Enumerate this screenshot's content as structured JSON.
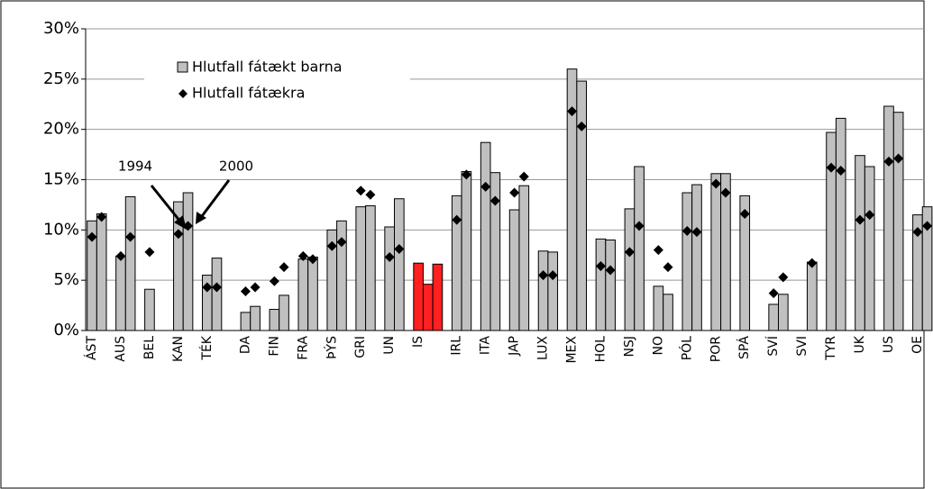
{
  "chart_data": {
    "type": "bar",
    "categories": [
      "ÁST",
      null,
      null,
      "AUS",
      null,
      null,
      "BEL",
      null,
      null,
      "KAN",
      null,
      null,
      "TÉK",
      null,
      null,
      null,
      "DA",
      null,
      null,
      "FIN",
      null,
      null,
      "FRA",
      null,
      null,
      "ÞÝS",
      null,
      null,
      "GRI",
      null,
      null,
      "UN",
      null,
      null,
      "IS",
      null,
      null,
      null,
      "IRL",
      null,
      null,
      "ITA",
      null,
      null,
      "JAP",
      null,
      null,
      "LUX",
      null,
      null,
      "MEX",
      null,
      null,
      "HOL",
      null,
      null,
      "NSJ",
      null,
      null,
      "NO",
      null,
      null,
      "PÓL",
      null,
      null,
      "POR",
      null,
      null,
      "SPÁ",
      null,
      null,
      "SVÍ",
      null,
      null,
      "SVI",
      null,
      null,
      "TYR",
      null,
      null,
      "UK",
      null,
      null,
      "US",
      null,
      null,
      "OE",
      null
    ],
    "series": [
      {
        "name": "Hlutfall fátækt barna",
        "color": "#c0c0c0",
        "values": [
          10.9,
          11.6,
          null,
          7.4,
          13.3,
          null,
          4.1,
          null,
          null,
          12.8,
          13.7,
          null,
          5.5,
          7.2,
          null,
          null,
          1.8,
          2.4,
          null,
          2.1,
          3.5,
          null,
          7.1,
          7.3,
          null,
          10.0,
          10.9,
          null,
          12.3,
          12.4,
          null,
          10.3,
          13.1,
          null,
          6.7,
          4.6,
          6.6,
          null,
          13.4,
          15.8,
          null,
          18.7,
          15.7,
          null,
          12.0,
          14.4,
          null,
          7.9,
          7.8,
          null,
          26.0,
          24.8,
          null,
          9.1,
          9.0,
          null,
          12.1,
          16.3,
          null,
          4.4,
          3.6,
          null,
          13.7,
          14.5,
          null,
          15.6,
          15.6,
          null,
          13.4,
          null,
          null,
          2.6,
          3.6,
          null,
          null,
          6.8,
          null,
          19.7,
          21.1,
          null,
          17.4,
          16.3,
          null,
          22.3,
          21.7,
          null,
          11.5,
          12.3
        ],
        "colors": [
          "#c0c0c0",
          "#c0c0c0",
          "#c0c0c0",
          "#c0c0c0",
          "#c0c0c0",
          "#c0c0c0",
          "#c0c0c0",
          "#c0c0c0",
          "#c0c0c0",
          "#c0c0c0",
          "#c0c0c0",
          "#c0c0c0",
          "#c0c0c0",
          "#c0c0c0",
          "#c0c0c0",
          "#c0c0c0",
          "#c0c0c0",
          "#c0c0c0",
          "#c0c0c0",
          "#c0c0c0",
          "#c0c0c0",
          "#c0c0c0",
          "#c0c0c0",
          "#c0c0c0",
          "#c0c0c0",
          "#c0c0c0",
          "#c0c0c0",
          "#c0c0c0",
          "#c0c0c0",
          "#c0c0c0",
          "#c0c0c0",
          "#c0c0c0",
          "#c0c0c0",
          "#c0c0c0",
          "#ff2020",
          "#ff2020",
          "#ff2020",
          "#c0c0c0",
          "#c0c0c0",
          "#c0c0c0",
          "#c0c0c0",
          "#c0c0c0",
          "#c0c0c0",
          "#c0c0c0",
          "#c0c0c0",
          "#c0c0c0",
          "#c0c0c0",
          "#c0c0c0",
          "#c0c0c0",
          "#c0c0c0",
          "#c0c0c0",
          "#c0c0c0",
          "#c0c0c0",
          "#c0c0c0",
          "#c0c0c0",
          "#c0c0c0",
          "#c0c0c0",
          "#c0c0c0",
          "#c0c0c0",
          "#c0c0c0",
          "#c0c0c0",
          "#c0c0c0",
          "#c0c0c0",
          "#c0c0c0",
          "#c0c0c0",
          "#c0c0c0",
          "#c0c0c0",
          "#c0c0c0",
          "#c0c0c0",
          "#c0c0c0",
          "#c0c0c0",
          "#c0c0c0",
          "#c0c0c0",
          "#c0c0c0",
          "#c0c0c0",
          "#c0c0c0",
          "#c0c0c0",
          "#c0c0c0",
          "#c0c0c0",
          "#c0c0c0",
          "#c0c0c0",
          "#c0c0c0",
          "#c0c0c0",
          "#c0c0c0",
          "#c0c0c0",
          "#c0c0c0",
          "#c0c0c0",
          "#c0c0c0"
        ]
      },
      {
        "name": "Hlutfall fátækra",
        "color": "#000000",
        "marker": "diamond",
        "values": [
          9.3,
          11.3,
          null,
          7.4,
          9.3,
          null,
          7.8,
          null,
          null,
          9.6,
          10.4,
          null,
          4.3,
          4.3,
          null,
          null,
          3.9,
          4.3,
          null,
          4.9,
          6.3,
          null,
          7.4,
          7.1,
          null,
          8.4,
          8.8,
          null,
          13.9,
          13.5,
          null,
          7.3,
          8.1,
          null,
          null,
          null,
          null,
          null,
          11.0,
          15.5,
          null,
          14.3,
          12.9,
          null,
          13.7,
          15.3,
          null,
          5.5,
          5.5,
          null,
          21.8,
          20.3,
          null,
          6.4,
          6.0,
          null,
          7.8,
          10.4,
          null,
          8.0,
          6.3,
          null,
          9.9,
          9.8,
          null,
          14.6,
          13.7,
          null,
          11.6,
          null,
          null,
          3.7,
          5.3,
          null,
          null,
          6.7,
          null,
          16.2,
          15.9,
          null,
          11.0,
          11.5,
          null,
          16.8,
          17.1,
          null,
          9.8,
          10.4
        ]
      }
    ],
    "annotations": [
      "1994",
      "2000"
    ],
    "ylim": [
      0,
      30
    ],
    "yticks": [
      {
        "value": 0,
        "label": "0%"
      },
      {
        "value": 5,
        "label": "5%"
      },
      {
        "value": 10,
        "label": "10%"
      },
      {
        "value": 15,
        "label": "15%"
      },
      {
        "value": 20,
        "label": "20%"
      },
      {
        "value": 25,
        "label": "25%"
      },
      {
        "value": 30,
        "label": "30%"
      }
    ],
    "grid": true,
    "legend": "upper left"
  }
}
